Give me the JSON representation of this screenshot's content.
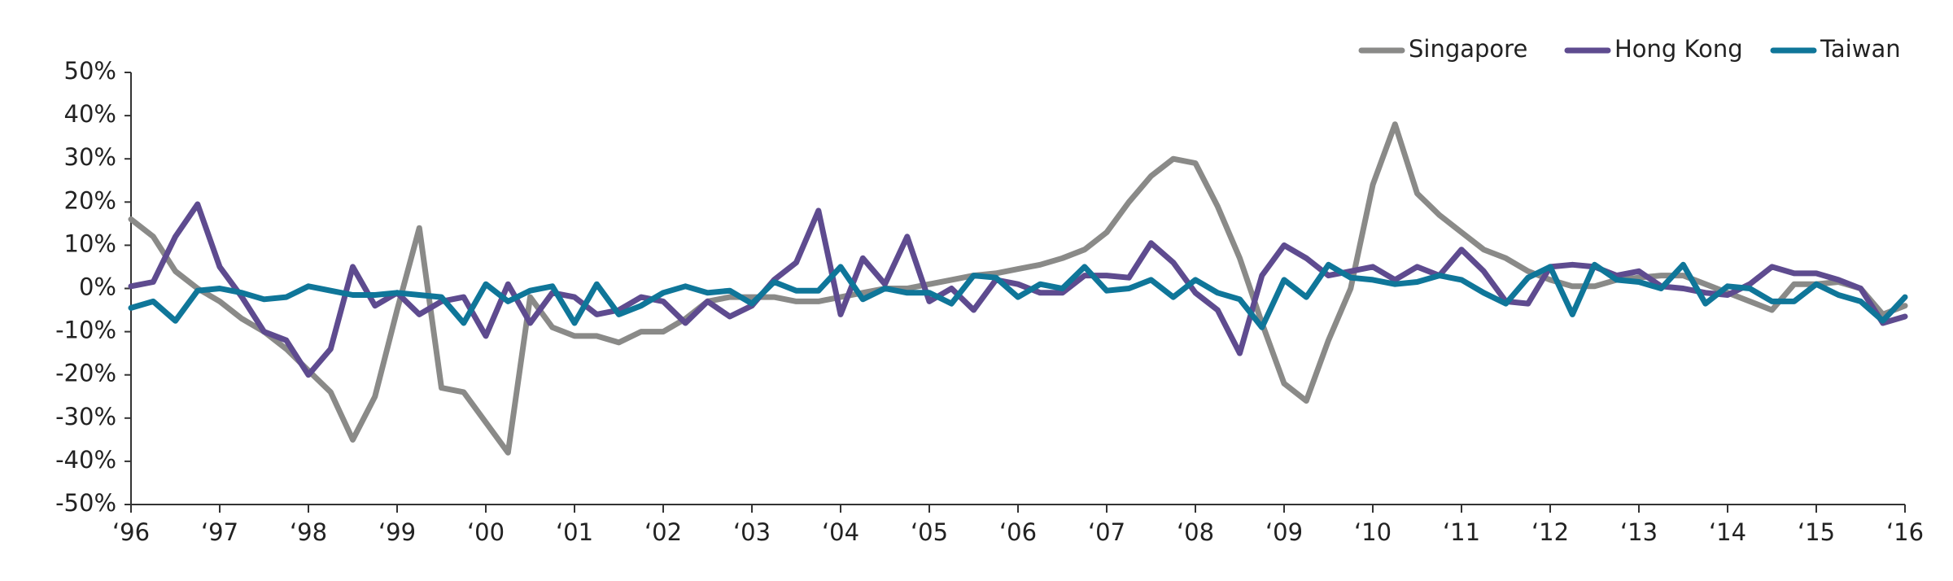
{
  "chart_data": {
    "type": "line",
    "categories": [
      "‘96",
      null,
      null,
      null,
      "‘97",
      null,
      null,
      null,
      "‘98",
      null,
      null,
      null,
      "‘99",
      null,
      null,
      null,
      "‘00",
      null,
      null,
      null,
      "‘01",
      null,
      null,
      null,
      "‘02",
      null,
      null,
      null,
      "‘03",
      null,
      null,
      null,
      "‘04",
      null,
      null,
      null,
      "‘05",
      null,
      null,
      null,
      "‘06",
      null,
      null,
      null,
      "‘07",
      null,
      null,
      null,
      "‘08",
      null,
      null,
      null,
      "‘09",
      null,
      null,
      null,
      "‘10",
      null,
      null,
      null,
      "‘11",
      null,
      null,
      null,
      "‘12",
      null,
      null,
      null,
      "‘13",
      null,
      null,
      null,
      "‘14",
      null,
      null,
      null,
      "‘15",
      null,
      null,
      null,
      "‘16"
    ],
    "series": [
      {
        "name": "Singapore",
        "color": "#8a8a88",
        "values": [
          16,
          12,
          4,
          0,
          -3,
          -7,
          -10,
          -14,
          -19,
          -24,
          -35,
          -25,
          -5,
          14,
          -23,
          -24,
          -31,
          -38,
          -2,
          -9,
          -11,
          -11,
          -12.5,
          -10,
          -10,
          -7,
          -3,
          -2,
          -2,
          -2,
          -3,
          -3,
          -2,
          -1,
          0,
          0,
          1,
          2,
          3,
          3.5,
          4.5,
          5.5,
          7,
          9,
          13,
          20,
          26,
          30,
          29,
          19,
          7,
          -8,
          -22,
          -26,
          -12,
          0,
          24,
          38,
          22,
          17,
          13,
          9,
          7,
          4,
          2,
          0.5,
          0.5,
          2,
          2.5,
          3,
          3,
          1,
          -1,
          -3,
          -5,
          1,
          1,
          1.5,
          0,
          -6,
          -4
        ]
      },
      {
        "name": "Hong Kong",
        "color": "#5e4b8f",
        "values": [
          0.5,
          1.5,
          12,
          19.5,
          5,
          -2,
          -10,
          -12,
          -20,
          -14,
          5,
          -4,
          -1,
          -6,
          -3,
          -2,
          -11,
          1,
          -8,
          -1,
          -2,
          -6,
          -5,
          -2,
          -3,
          -8,
          -3,
          -6.5,
          -4,
          2,
          6,
          18,
          -6,
          7,
          1,
          12,
          -3,
          0,
          -5,
          2,
          1,
          -1,
          -1,
          3,
          3,
          2.5,
          10.5,
          6,
          -1,
          -5,
          -15,
          3,
          10,
          7,
          3,
          4,
          5,
          2,
          5,
          3,
          9,
          4,
          -3,
          -3.5,
          5,
          5.5,
          5,
          3,
          4,
          0.5,
          0,
          -1,
          -1.5,
          1,
          5,
          3.5,
          3.5,
          2,
          0,
          -8,
          -6.5
        ]
      },
      {
        "name": "Taiwan",
        "color": "#0f7699",
        "values": [
          -4.5,
          -3,
          -7.5,
          -0.5,
          0,
          -1,
          -2.5,
          -2,
          0.5,
          -0.5,
          -1.5,
          -1.5,
          -1,
          -1.5,
          -2,
          -8,
          1,
          -3,
          -0.5,
          0.5,
          -8,
          1,
          -6,
          -4,
          -1,
          0.5,
          -1,
          -0.5,
          -3.5,
          1.5,
          -0.5,
          -0.5,
          5,
          -2.5,
          0,
          -1,
          -1,
          -3.5,
          3,
          2.5,
          -2,
          1,
          0,
          5,
          -0.5,
          0,
          2,
          -2,
          2,
          -1,
          -2.5,
          -9,
          2,
          -2,
          5.5,
          2.5,
          2,
          1,
          1.5,
          3,
          2,
          -1,
          -3.5,
          2.5,
          5,
          -6,
          5.5,
          2,
          1.5,
          0,
          5.5,
          -3.5,
          0.5,
          0,
          -3,
          -3,
          1,
          -1.5,
          -3,
          -7.5,
          -2
        ]
      }
    ],
    "ylim": [
      -50,
      50
    ],
    "yticks": [
      {
        "value": -50,
        "label": "-50%"
      },
      {
        "value": -40,
        "label": "-40%"
      },
      {
        "value": -30,
        "label": "-30%"
      },
      {
        "value": -20,
        "label": "-20%"
      },
      {
        "value": -10,
        "label": "-10%"
      },
      {
        "value": 0,
        "label": "0%"
      },
      {
        "value": 10,
        "label": "10%"
      },
      {
        "value": 20,
        "label": "20%"
      },
      {
        "value": 30,
        "label": "30%"
      },
      {
        "value": 40,
        "label": "40%"
      },
      {
        "value": 50,
        "label": "50%"
      }
    ],
    "legend": "top-right"
  }
}
